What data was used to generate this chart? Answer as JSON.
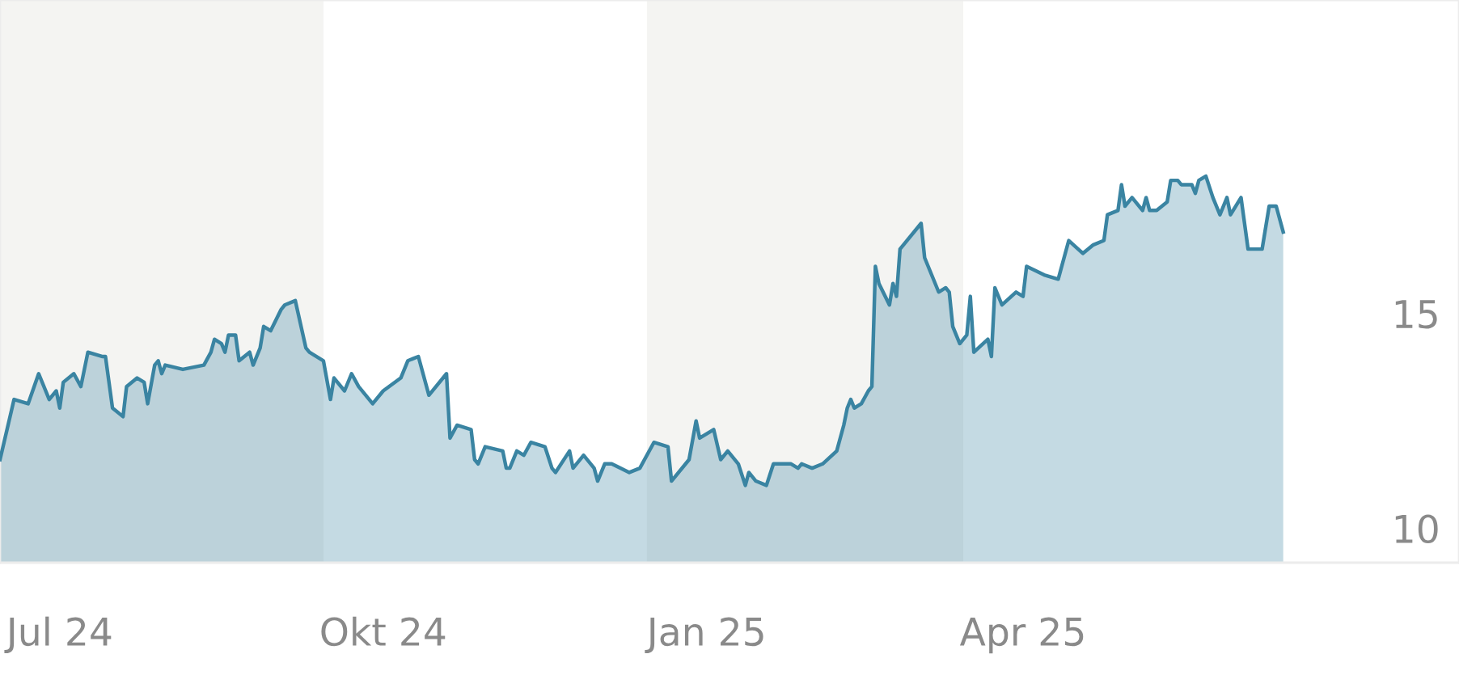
{
  "chart_data": {
    "type": "area",
    "x": [
      "2024-07-01",
      "2024-07-05",
      "2024-07-09",
      "2024-07-12",
      "2024-07-15",
      "2024-07-17",
      "2024-07-18",
      "2024-07-19",
      "2024-07-22",
      "2024-07-24",
      "2024-07-26",
      "2024-07-30",
      "2024-07-31",
      "2024-08-02",
      "2024-08-05",
      "2024-08-06",
      "2024-08-09",
      "2024-08-11",
      "2024-08-12",
      "2024-08-14",
      "2024-08-15",
      "2024-08-16",
      "2024-08-17",
      "2024-08-22",
      "2024-08-28",
      "2024-08-30",
      "2024-08-31",
      "2024-09-02",
      "2024-09-03",
      "2024-09-04",
      "2024-09-06",
      "2024-09-07",
      "2024-09-10",
      "2024-09-11",
      "2024-09-13",
      "2024-09-14",
      "2024-09-16",
      "2024-09-19",
      "2024-09-20",
      "2024-09-23",
      "2024-09-26",
      "2024-09-27",
      "2024-10-01",
      "2024-10-03",
      "2024-10-04",
      "2024-10-07",
      "2024-10-09",
      "2024-10-11",
      "2024-10-15",
      "2024-10-18",
      "2024-10-23",
      "2024-10-25",
      "2024-10-28",
      "2024-10-31",
      "2024-11-05",
      "2024-11-06",
      "2024-11-08",
      "2024-11-12",
      "2024-11-13",
      "2024-11-14",
      "2024-11-16",
      "2024-11-21",
      "2024-11-22",
      "2024-11-23",
      "2024-11-25",
      "2024-11-27",
      "2024-11-29",
      "2024-12-03",
      "2024-12-05",
      "2024-12-06",
      "2024-12-10",
      "2024-12-11",
      "2024-12-14",
      "2024-12-17",
      "2024-12-18",
      "2024-12-20",
      "2024-12-22",
      "2024-12-27",
      "2024-12-30",
      "2025-01-03",
      "2025-01-07",
      "2025-01-08",
      "2025-01-13",
      "2025-01-15",
      "2025-01-16",
      "2025-01-20",
      "2025-01-22",
      "2025-01-24",
      "2025-01-27",
      "2025-01-29",
      "2025-01-30",
      "2025-02-01",
      "2025-02-04",
      "2025-02-06",
      "2025-02-11",
      "2025-02-13",
      "2025-02-14",
      "2025-02-17",
      "2025-02-20",
      "2025-02-24",
      "2025-02-26",
      "2025-02-27",
      "2025-02-28",
      "2025-03-01",
      "2025-03-03",
      "2025-03-05",
      "2025-03-06",
      "2025-03-07",
      "2025-03-08",
      "2025-03-11",
      "2025-03-12",
      "2025-03-13",
      "2025-03-14",
      "2025-03-20",
      "2025-03-21",
      "2025-03-23",
      "2025-03-25",
      "2025-03-27",
      "2025-03-28",
      "2025-03-29",
      "2025-03-31",
      "2025-04-02",
      "2025-04-03",
      "2025-04-04",
      "2025-04-08",
      "2025-04-09",
      "2025-04-10",
      "2025-04-12",
      "2025-04-16",
      "2025-04-18",
      "2025-04-19",
      "2025-04-24",
      "2025-04-28",
      "2025-05-01",
      "2025-05-05",
      "2025-05-08",
      "2025-05-11",
      "2025-05-12",
      "2025-05-15",
      "2025-05-16",
      "2025-05-17",
      "2025-05-19",
      "2025-05-22",
      "2025-05-23",
      "2025-05-24",
      "2025-05-26",
      "2025-05-29",
      "2025-05-30",
      "2025-06-01",
      "2025-06-02",
      "2025-06-05",
      "2025-06-06",
      "2025-06-07",
      "2025-06-09",
      "2025-06-11",
      "2025-06-13",
      "2025-06-15",
      "2025-06-16",
      "2025-06-19",
      "2025-06-21",
      "2025-06-25",
      "2025-06-27",
      "2025-06-29",
      "2025-07-01"
    ],
    "series": [
      {
        "color": "#3a84a2",
        "values": [
          11.6,
          13.0,
          12.9,
          13.6,
          13.0,
          13.2,
          12.8,
          13.4,
          13.6,
          13.3,
          14.1,
          14.0,
          14.0,
          12.8,
          12.6,
          13.3,
          13.5,
          13.4,
          12.9,
          13.8,
          13.9,
          13.6,
          13.8,
          13.7,
          13.8,
          14.1,
          14.4,
          14.3,
          14.1,
          14.5,
          14.5,
          13.9,
          14.1,
          13.8,
          14.2,
          14.7,
          14.6,
          15.1,
          15.2,
          15.3,
          14.2,
          14.1,
          13.9,
          13.0,
          13.5,
          13.2,
          13.6,
          13.3,
          12.9,
          13.2,
          13.5,
          13.9,
          14.0,
          13.1,
          13.6,
          12.1,
          12.4,
          12.3,
          11.6,
          11.5,
          11.9,
          11.8,
          11.4,
          11.4,
          11.8,
          11.7,
          12.0,
          11.9,
          11.4,
          11.3,
          11.8,
          11.4,
          11.7,
          11.4,
          11.1,
          11.5,
          11.5,
          11.3,
          11.4,
          12.0,
          11.9,
          11.1,
          11.6,
          12.5,
          12.1,
          12.3,
          11.6,
          11.8,
          11.5,
          11.0,
          11.3,
          11.1,
          11.0,
          11.5,
          11.5,
          11.4,
          11.5,
          11.4,
          11.5,
          11.8,
          12.4,
          12.8,
          13.0,
          12.8,
          12.9,
          13.2,
          13.3,
          16.1,
          15.7,
          15.2,
          15.7,
          15.4,
          16.5,
          17.1,
          16.3,
          15.9,
          15.5,
          15.6,
          15.5,
          14.7,
          14.3,
          14.5,
          15.4,
          14.1,
          14.4,
          14.0,
          15.6,
          15.2,
          15.5,
          15.4,
          16.1,
          15.9,
          15.8,
          16.7,
          16.4,
          16.6,
          16.7,
          17.3,
          17.4,
          18.0,
          17.5,
          17.7,
          17.4,
          17.7,
          17.4,
          17.4,
          17.6,
          18.1,
          18.1,
          18.0,
          18.0,
          17.8,
          18.1,
          18.2,
          17.7,
          17.3,
          17.7,
          17.3,
          17.7,
          16.5,
          16.5,
          17.5,
          17.5,
          16.9
        ]
      }
    ],
    "xlim": [
      "2024-07-01",
      "2025-08-20"
    ],
    "xticks": [
      {
        "value": "2024-07-18",
        "label": "Jul 24"
      },
      {
        "value": "2024-10-18",
        "label": "Okt 24"
      },
      {
        "value": "2025-01-18",
        "label": "Jan 25"
      },
      {
        "value": "2025-04-18",
        "label": "Apr 25"
      }
    ],
    "ylim": [
      9.2,
      22.3
    ],
    "yticks": [
      10,
      15
    ],
    "bands": [
      {
        "axis": "x",
        "from": "2024-07-01",
        "to": "2024-10-01",
        "label": null,
        "color": "#f4f4f2"
      },
      {
        "axis": "x",
        "from": "2025-01-01",
        "to": "2025-04-01",
        "label": null,
        "color": "#f4f4f2"
      }
    ],
    "grid": false,
    "legend": false
  }
}
